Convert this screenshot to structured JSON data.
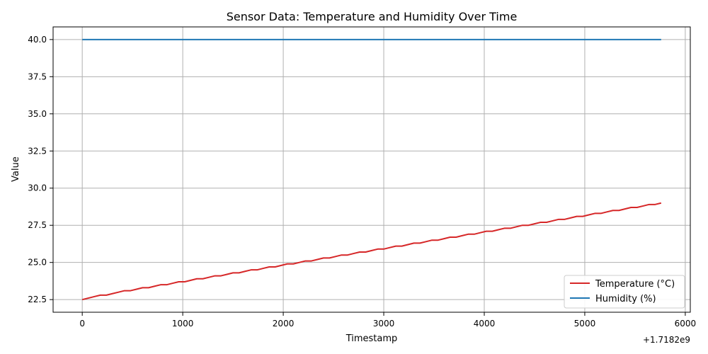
{
  "chart_data": {
    "type": "line",
    "title": "Sensor Data: Temperature and Humidity Over Time",
    "xlabel": "Timestamp",
    "ylabel": "Value",
    "x_offset_label": "+1.7182e9",
    "xlim": [
      -290,
      6050
    ],
    "ylim": [
      21.65,
      40.85
    ],
    "x_ticks": [
      0,
      1000,
      2000,
      3000,
      4000,
      5000,
      6000
    ],
    "x_tick_labels": [
      "0",
      "1000",
      "2000",
      "3000",
      "4000",
      "5000",
      "6000"
    ],
    "y_ticks": [
      22.5,
      25.0,
      27.5,
      30.0,
      32.5,
      35.0,
      37.5,
      40.0
    ],
    "y_tick_labels": [
      "22.5",
      "25.0",
      "27.5",
      "30.0",
      "32.5",
      "35.0",
      "37.5",
      "40.0"
    ],
    "grid": true,
    "legend_position": "bottom-right",
    "series": [
      {
        "name": "Temperature (°C)",
        "color": "#d62728",
        "x": [
          0,
          60,
          120,
          180,
          240,
          300,
          360,
          420,
          480,
          540,
          600,
          660,
          720,
          780,
          840,
          900,
          960,
          1020,
          1080,
          1140,
          1200,
          1260,
          1320,
          1380,
          1440,
          1500,
          1560,
          1620,
          1680,
          1740,
          1800,
          1860,
          1920,
          1980,
          2040,
          2100,
          2160,
          2220,
          2280,
          2340,
          2400,
          2460,
          2520,
          2580,
          2640,
          2700,
          2760,
          2820,
          2880,
          2940,
          3000,
          3060,
          3120,
          3180,
          3240,
          3300,
          3360,
          3420,
          3480,
          3540,
          3600,
          3660,
          3720,
          3780,
          3840,
          3900,
          3960,
          4020,
          4080,
          4140,
          4200,
          4260,
          4320,
          4380,
          4440,
          4500,
          4560,
          4620,
          4680,
          4740,
          4800,
          4860,
          4920,
          4980,
          5040,
          5100,
          5160,
          5220,
          5280,
          5340,
          5400,
          5460,
          5520,
          5580,
          5640,
          5700,
          5760
        ],
        "y": [
          22.5,
          22.6,
          22.7,
          22.8,
          22.8,
          22.9,
          23.0,
          23.1,
          23.1,
          23.2,
          23.3,
          23.3,
          23.4,
          23.5,
          23.5,
          23.6,
          23.7,
          23.7,
          23.8,
          23.9,
          23.9,
          24.0,
          24.1,
          24.1,
          24.2,
          24.3,
          24.3,
          24.4,
          24.5,
          24.5,
          24.6,
          24.7,
          24.7,
          24.8,
          24.9,
          24.9,
          25.0,
          25.1,
          25.1,
          25.2,
          25.3,
          25.3,
          25.4,
          25.5,
          25.5,
          25.6,
          25.7,
          25.7,
          25.8,
          25.9,
          25.9,
          26.0,
          26.1,
          26.1,
          26.2,
          26.3,
          26.3,
          26.4,
          26.5,
          26.5,
          26.6,
          26.7,
          26.7,
          26.8,
          26.9,
          26.9,
          27.0,
          27.1,
          27.1,
          27.2,
          27.3,
          27.3,
          27.4,
          27.5,
          27.5,
          27.6,
          27.7,
          27.7,
          27.8,
          27.9,
          27.9,
          28.0,
          28.1,
          28.1,
          28.2,
          28.3,
          28.3,
          28.4,
          28.5,
          28.5,
          28.6,
          28.7,
          28.7,
          28.8,
          28.9,
          28.9,
          29.0
        ]
      },
      {
        "name": "Humidity (%)",
        "color": "#1f77b4",
        "x": [
          0,
          5760
        ],
        "y": [
          40.0,
          40.0
        ]
      }
    ]
  }
}
